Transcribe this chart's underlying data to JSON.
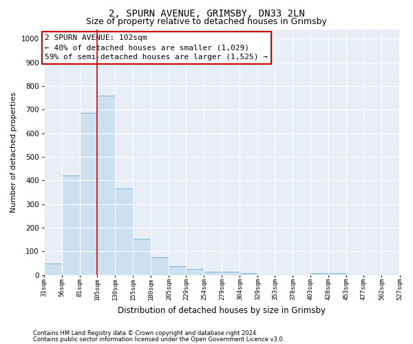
{
  "title": "2, SPURN AVENUE, GRIMSBY, DN33 2LN",
  "subtitle": "Size of property relative to detached houses in Grimsby",
  "xlabel": "Distribution of detached houses by size in Grimsby",
  "ylabel": "Number of detached properties",
  "bin_edges": [
    31,
    56,
    81,
    105,
    130,
    155,
    180,
    205,
    229,
    254,
    279,
    304,
    329,
    353,
    378,
    403,
    428,
    453,
    477,
    502,
    527
  ],
  "bar_heights": [
    50,
    420,
    685,
    760,
    365,
    155,
    75,
    38,
    25,
    15,
    15,
    8,
    0,
    0,
    0,
    8,
    8,
    0,
    0,
    0
  ],
  "bar_color": "#cce0f0",
  "bar_edge_color": "#7ab8d9",
  "vline_x": 105,
  "vline_color": "#cc0000",
  "ylim": [
    0,
    1040
  ],
  "yticks": [
    0,
    100,
    200,
    300,
    400,
    500,
    600,
    700,
    800,
    900,
    1000
  ],
  "annotation_text": "2 SPURN AVENUE: 102sqm\n← 40% of detached houses are smaller (1,029)\n59% of semi-detached houses are larger (1,525) →",
  "annotation_box_color": "#ffffff",
  "annotation_box_edge": "#cc0000",
  "footnote1": "Contains HM Land Registry data © Crown copyright and database right 2024.",
  "footnote2": "Contains public sector information licensed under the Open Government Licence v3.0.",
  "bg_color": "#e8eef5",
  "title_fontsize": 10,
  "subtitle_fontsize": 9,
  "ann_fontsize": 8
}
